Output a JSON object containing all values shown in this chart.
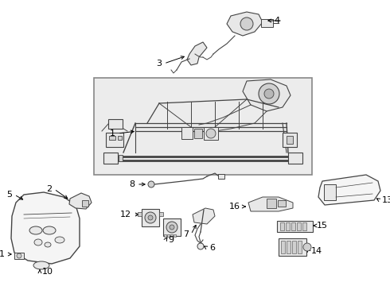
{
  "bg_color": "#ffffff",
  "line_color": "#333333",
  "part_color": "#444444",
  "fill_light": "#f5f5f5",
  "fill_mid": "#e8e8e8",
  "fill_dark": "#d0d0d0",
  "box_fill": "#ececec",
  "box_edge": "#777777",
  "label_fs": 8,
  "fig_w": 4.9,
  "fig_h": 3.6,
  "dpi": 100
}
